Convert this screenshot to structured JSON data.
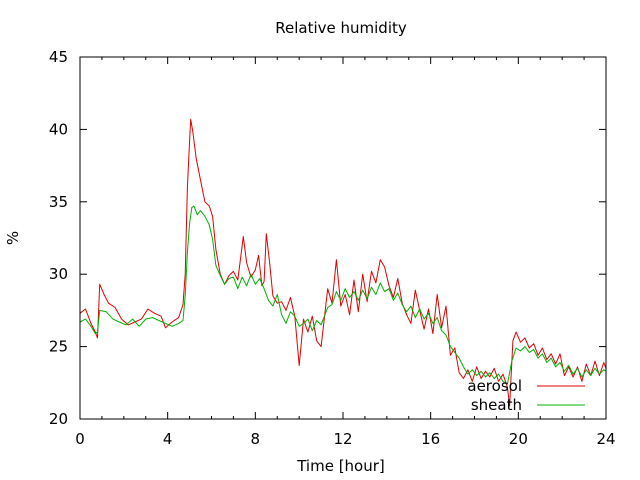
{
  "chart_data": {
    "type": "line",
    "title": "Relative humidity",
    "xlabel": "Time [hour]",
    "ylabel": "%",
    "xlim": [
      0,
      24
    ],
    "ylim": [
      20,
      45
    ],
    "xticks": [
      0,
      4,
      8,
      12,
      16,
      20,
      24
    ],
    "yticks": [
      20,
      25,
      30,
      35,
      40,
      45
    ],
    "grid": false,
    "legend_position": "bottom-right",
    "series": [
      {
        "name": "aerosol",
        "color": "#e00000",
        "points": [
          [
            0.0,
            27.3
          ],
          [
            0.25,
            27.6
          ],
          [
            0.5,
            26.6
          ],
          [
            0.7,
            26.0
          ],
          [
            0.8,
            25.6
          ],
          [
            0.9,
            29.3
          ],
          [
            1.1,
            28.6
          ],
          [
            1.3,
            28.0
          ],
          [
            1.6,
            27.7
          ],
          [
            1.9,
            26.9
          ],
          [
            2.2,
            26.5
          ],
          [
            2.5,
            26.7
          ],
          [
            2.8,
            26.9
          ],
          [
            3.1,
            27.6
          ],
          [
            3.4,
            27.3
          ],
          [
            3.7,
            27.1
          ],
          [
            3.9,
            26.3
          ],
          [
            4.2,
            26.7
          ],
          [
            4.5,
            27.0
          ],
          [
            4.7,
            27.9
          ],
          [
            4.8,
            30.0
          ],
          [
            4.9,
            36.0
          ],
          [
            5.0,
            39.2
          ],
          [
            5.05,
            40.7
          ],
          [
            5.15,
            39.8
          ],
          [
            5.3,
            38.0
          ],
          [
            5.5,
            36.5
          ],
          [
            5.7,
            35.0
          ],
          [
            5.9,
            34.7
          ],
          [
            6.05,
            34.0
          ],
          [
            6.2,
            31.7
          ],
          [
            6.4,
            30.0
          ],
          [
            6.6,
            29.3
          ],
          [
            6.8,
            29.9
          ],
          [
            7.0,
            30.2
          ],
          [
            7.2,
            29.6
          ],
          [
            7.45,
            32.6
          ],
          [
            7.6,
            30.8
          ],
          [
            7.8,
            29.8
          ],
          [
            8.0,
            30.3
          ],
          [
            8.15,
            31.3
          ],
          [
            8.3,
            29.2
          ],
          [
            8.4,
            29.5
          ],
          [
            8.5,
            32.8
          ],
          [
            8.65,
            30.8
          ],
          [
            8.8,
            28.5
          ],
          [
            9.0,
            28.0
          ],
          [
            9.2,
            28.1
          ],
          [
            9.4,
            27.5
          ],
          [
            9.6,
            28.4
          ],
          [
            9.8,
            27.1
          ],
          [
            10.0,
            23.7
          ],
          [
            10.2,
            26.9
          ],
          [
            10.4,
            26.0
          ],
          [
            10.6,
            27.1
          ],
          [
            10.8,
            25.4
          ],
          [
            11.0,
            25.0
          ],
          [
            11.3,
            29.0
          ],
          [
            11.5,
            28.0
          ],
          [
            11.7,
            31.0
          ],
          [
            11.9,
            27.8
          ],
          [
            12.1,
            28.6
          ],
          [
            12.3,
            27.2
          ],
          [
            12.5,
            29.6
          ],
          [
            12.7,
            27.4
          ],
          [
            12.9,
            30.0
          ],
          [
            13.1,
            28.1
          ],
          [
            13.3,
            30.2
          ],
          [
            13.5,
            29.4
          ],
          [
            13.7,
            31.0
          ],
          [
            13.9,
            30.5
          ],
          [
            14.1,
            29.2
          ],
          [
            14.3,
            28.4
          ],
          [
            14.5,
            29.7
          ],
          [
            14.7,
            28.0
          ],
          [
            14.9,
            27.2
          ],
          [
            15.1,
            26.6
          ],
          [
            15.3,
            28.9
          ],
          [
            15.5,
            27.5
          ],
          [
            15.7,
            26.2
          ],
          [
            15.9,
            27.6
          ],
          [
            16.1,
            25.9
          ],
          [
            16.3,
            28.6
          ],
          [
            16.5,
            26.3
          ],
          [
            16.7,
            27.8
          ],
          [
            16.9,
            24.4
          ],
          [
            17.1,
            24.9
          ],
          [
            17.3,
            23.2
          ],
          [
            17.5,
            22.8
          ],
          [
            17.7,
            23.4
          ],
          [
            17.9,
            22.6
          ],
          [
            18.1,
            23.6
          ],
          [
            18.3,
            22.8
          ],
          [
            18.5,
            23.3
          ],
          [
            18.7,
            22.9
          ],
          [
            18.9,
            23.5
          ],
          [
            19.1,
            22.6
          ],
          [
            19.3,
            23.1
          ],
          [
            19.5,
            22.2
          ],
          [
            19.6,
            20.9
          ],
          [
            19.75,
            25.4
          ],
          [
            19.9,
            26.0
          ],
          [
            20.1,
            25.3
          ],
          [
            20.3,
            25.6
          ],
          [
            20.5,
            24.9
          ],
          [
            20.7,
            25.2
          ],
          [
            20.9,
            24.4
          ],
          [
            21.1,
            24.9
          ],
          [
            21.3,
            24.1
          ],
          [
            21.5,
            24.5
          ],
          [
            21.7,
            23.8
          ],
          [
            21.9,
            24.5
          ],
          [
            22.1,
            23.0
          ],
          [
            22.3,
            23.6
          ],
          [
            22.5,
            22.9
          ],
          [
            22.7,
            23.6
          ],
          [
            22.9,
            22.6
          ],
          [
            23.1,
            23.8
          ],
          [
            23.3,
            23.0
          ],
          [
            23.5,
            24.0
          ],
          [
            23.7,
            23.0
          ],
          [
            23.9,
            23.9
          ],
          [
            24.0,
            23.5
          ]
        ]
      },
      {
        "name": "sheath",
        "color": "#00b000",
        "points": [
          [
            0.0,
            26.7
          ],
          [
            0.25,
            26.9
          ],
          [
            0.5,
            26.4
          ],
          [
            0.7,
            25.9
          ],
          [
            0.8,
            26.0
          ],
          [
            0.9,
            27.5
          ],
          [
            1.2,
            27.4
          ],
          [
            1.5,
            26.9
          ],
          [
            1.8,
            26.7
          ],
          [
            2.1,
            26.5
          ],
          [
            2.4,
            26.9
          ],
          [
            2.7,
            26.4
          ],
          [
            3.0,
            26.9
          ],
          [
            3.3,
            27.0
          ],
          [
            3.6,
            26.8
          ],
          [
            3.9,
            26.6
          ],
          [
            4.2,
            26.4
          ],
          [
            4.5,
            26.6
          ],
          [
            4.7,
            26.8
          ],
          [
            4.8,
            28.5
          ],
          [
            4.9,
            31.5
          ],
          [
            5.0,
            33.5
          ],
          [
            5.1,
            34.6
          ],
          [
            5.2,
            34.7
          ],
          [
            5.35,
            34.1
          ],
          [
            5.5,
            34.4
          ],
          [
            5.7,
            34.0
          ],
          [
            5.9,
            33.4
          ],
          [
            6.05,
            32.4
          ],
          [
            6.2,
            30.6
          ],
          [
            6.4,
            29.9
          ],
          [
            6.6,
            29.3
          ],
          [
            6.8,
            29.7
          ],
          [
            7.0,
            29.8
          ],
          [
            7.2,
            29.0
          ],
          [
            7.4,
            29.8
          ],
          [
            7.6,
            29.2
          ],
          [
            7.8,
            30.0
          ],
          [
            8.0,
            29.3
          ],
          [
            8.2,
            29.7
          ],
          [
            8.4,
            29.0
          ],
          [
            8.6,
            28.2
          ],
          [
            8.8,
            27.8
          ],
          [
            9.0,
            28.6
          ],
          [
            9.2,
            27.2
          ],
          [
            9.4,
            26.6
          ],
          [
            9.6,
            27.4
          ],
          [
            9.8,
            27.1
          ],
          [
            10.0,
            26.4
          ],
          [
            10.2,
            26.6
          ],
          [
            10.4,
            26.9
          ],
          [
            10.6,
            26.1
          ],
          [
            10.8,
            26.8
          ],
          [
            11.0,
            26.5
          ],
          [
            11.3,
            27.7
          ],
          [
            11.5,
            27.9
          ],
          [
            11.7,
            28.8
          ],
          [
            11.9,
            28.2
          ],
          [
            12.1,
            29.0
          ],
          [
            12.3,
            28.4
          ],
          [
            12.5,
            28.8
          ],
          [
            12.7,
            28.2
          ],
          [
            12.9,
            28.9
          ],
          [
            13.1,
            28.3
          ],
          [
            13.3,
            29.1
          ],
          [
            13.5,
            28.6
          ],
          [
            13.7,
            29.4
          ],
          [
            13.9,
            28.8
          ],
          [
            14.1,
            29.0
          ],
          [
            14.3,
            28.2
          ],
          [
            14.5,
            28.7
          ],
          [
            14.7,
            27.9
          ],
          [
            14.9,
            27.4
          ],
          [
            15.1,
            27.8
          ],
          [
            15.3,
            27.0
          ],
          [
            15.5,
            27.6
          ],
          [
            15.7,
            26.9
          ],
          [
            15.9,
            27.3
          ],
          [
            16.1,
            26.6
          ],
          [
            16.3,
            27.0
          ],
          [
            16.5,
            26.1
          ],
          [
            16.7,
            25.8
          ],
          [
            16.9,
            25.0
          ],
          [
            17.1,
            24.6
          ],
          [
            17.3,
            24.2
          ],
          [
            17.5,
            23.6
          ],
          [
            17.7,
            23.1
          ],
          [
            17.9,
            23.4
          ],
          [
            18.1,
            23.0
          ],
          [
            18.3,
            23.3
          ],
          [
            18.5,
            22.9
          ],
          [
            18.7,
            23.2
          ],
          [
            18.9,
            22.8
          ],
          [
            19.1,
            23.1
          ],
          [
            19.3,
            22.6
          ],
          [
            19.5,
            22.4
          ],
          [
            19.7,
            24.0
          ],
          [
            19.9,
            24.9
          ],
          [
            20.1,
            24.7
          ],
          [
            20.3,
            25.0
          ],
          [
            20.5,
            24.6
          ],
          [
            20.7,
            24.8
          ],
          [
            20.9,
            24.2
          ],
          [
            21.1,
            24.5
          ],
          [
            21.3,
            23.9
          ],
          [
            21.5,
            24.2
          ],
          [
            21.7,
            23.6
          ],
          [
            21.9,
            23.9
          ],
          [
            22.1,
            23.3
          ],
          [
            22.3,
            23.7
          ],
          [
            22.5,
            23.1
          ],
          [
            22.7,
            23.5
          ],
          [
            22.9,
            22.9
          ],
          [
            23.1,
            23.4
          ],
          [
            23.3,
            23.0
          ],
          [
            23.5,
            23.5
          ],
          [
            23.7,
            23.1
          ],
          [
            23.9,
            23.4
          ],
          [
            24.0,
            23.3
          ]
        ]
      }
    ]
  }
}
